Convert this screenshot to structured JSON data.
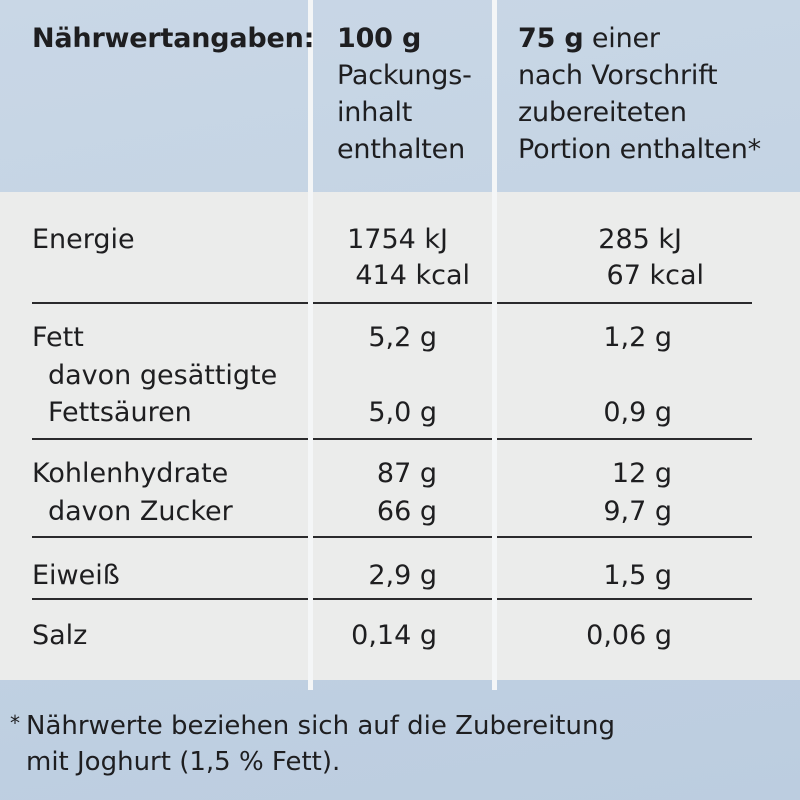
{
  "header": {
    "title": "Nährwertangaben:",
    "col1": {
      "amount": "100 g",
      "lines": [
        "Packungs-",
        "inhalt",
        "enthalten"
      ]
    },
    "col2": {
      "amount": "75 g",
      "amount_suffix": " einer",
      "lines": [
        "nach Vorschrift",
        "zubereiteten",
        "Portion enthalten*"
      ]
    }
  },
  "rows": {
    "energie": {
      "label": "Energie",
      "v1_kj": "1754 kJ",
      "v1_kcal": "414 kcal",
      "v2_kj": "285 kJ",
      "v2_kcal": "67 kcal"
    },
    "fett": {
      "label": "Fett",
      "v1": "5,2 g",
      "v2": "1,2 g"
    },
    "gesaettigte": {
      "label1": "davon gesättigte",
      "label2": "Fettsäuren",
      "v1": "5,0 g",
      "v2": "0,9 g"
    },
    "kohlenhydrate": {
      "label": "Kohlenhydrate",
      "v1": "87 g",
      "v2": "12 g"
    },
    "zucker": {
      "label": "davon Zucker",
      "v1": "66 g",
      "v2": "9,7 g"
    },
    "eiweiss": {
      "label": "Eiweiß",
      "v1": "2,9 g",
      "v2": "1,5 g"
    },
    "salz": {
      "label": "Salz",
      "v1": "0,14 g",
      "v2": "0,06 g"
    }
  },
  "footnote": {
    "star": "*",
    "line1": "Nährwerte beziehen sich auf die Zubereitung",
    "line2": "mit Joghurt (1,5 % Fett)."
  },
  "colors": {
    "background_blue": "#c3d3e3",
    "panel": "#ebeceb",
    "separator": "#f4f6f7",
    "text": "#1e1e20"
  }
}
